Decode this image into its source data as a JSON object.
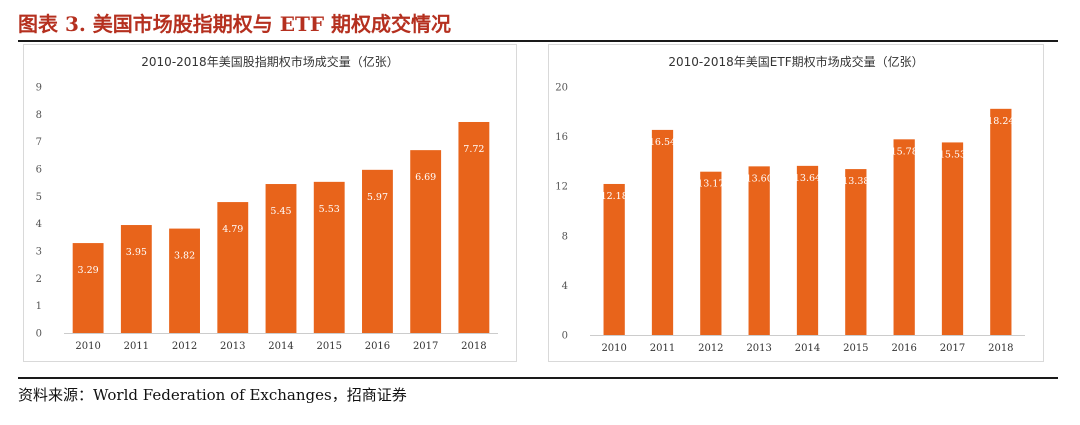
{
  "figure": {
    "title": "图表 3. 美国市场股指期权与 ETF 期权成交情况",
    "source": "资料来源：World Federation of Exchanges，招商证券"
  },
  "colors": {
    "bar": "#e8641b",
    "title": "#b5301f",
    "axis": "#cccccc"
  },
  "chart_data": [
    {
      "type": "bar",
      "title": "2010-2018年美国股指期权市场成交量（亿张）",
      "categories": [
        "2010",
        "2011",
        "2012",
        "2013",
        "2014",
        "2015",
        "2016",
        "2017",
        "2018"
      ],
      "values": [
        3.29,
        3.95,
        3.82,
        4.79,
        5.45,
        5.53,
        5.97,
        6.69,
        7.72
      ],
      "value_labels": [
        "3.29",
        "3.95",
        "3.82",
        "4.79",
        "5.45",
        "5.53",
        "5.97",
        "6.69",
        "7.72"
      ],
      "yticks": [
        "0",
        "1",
        "2",
        "3",
        "4",
        "5",
        "6",
        "7",
        "8",
        "9"
      ],
      "ylim": [
        0,
        9
      ],
      "xlabel": "",
      "ylabel": "",
      "grid": false
    },
    {
      "type": "bar",
      "title": "2010-2018年美国ETF期权市场成交量（亿张）",
      "categories": [
        "2010",
        "2011",
        "2012",
        "2013",
        "2014",
        "2015",
        "2016",
        "2017",
        "2018"
      ],
      "values": [
        12.18,
        16.54,
        13.17,
        13.6,
        13.64,
        13.38,
        15.78,
        15.53,
        18.24
      ],
      "value_labels": [
        "12.18",
        "16.54",
        "13.17",
        "13.60",
        "13.64",
        "13.38",
        "15.78",
        "15.53",
        "18.24"
      ],
      "yticks": [
        "0",
        "4",
        "8",
        "12",
        "16",
        "20"
      ],
      "ylim": [
        0,
        20
      ],
      "xlabel": "",
      "ylabel": "",
      "grid": false
    }
  ]
}
